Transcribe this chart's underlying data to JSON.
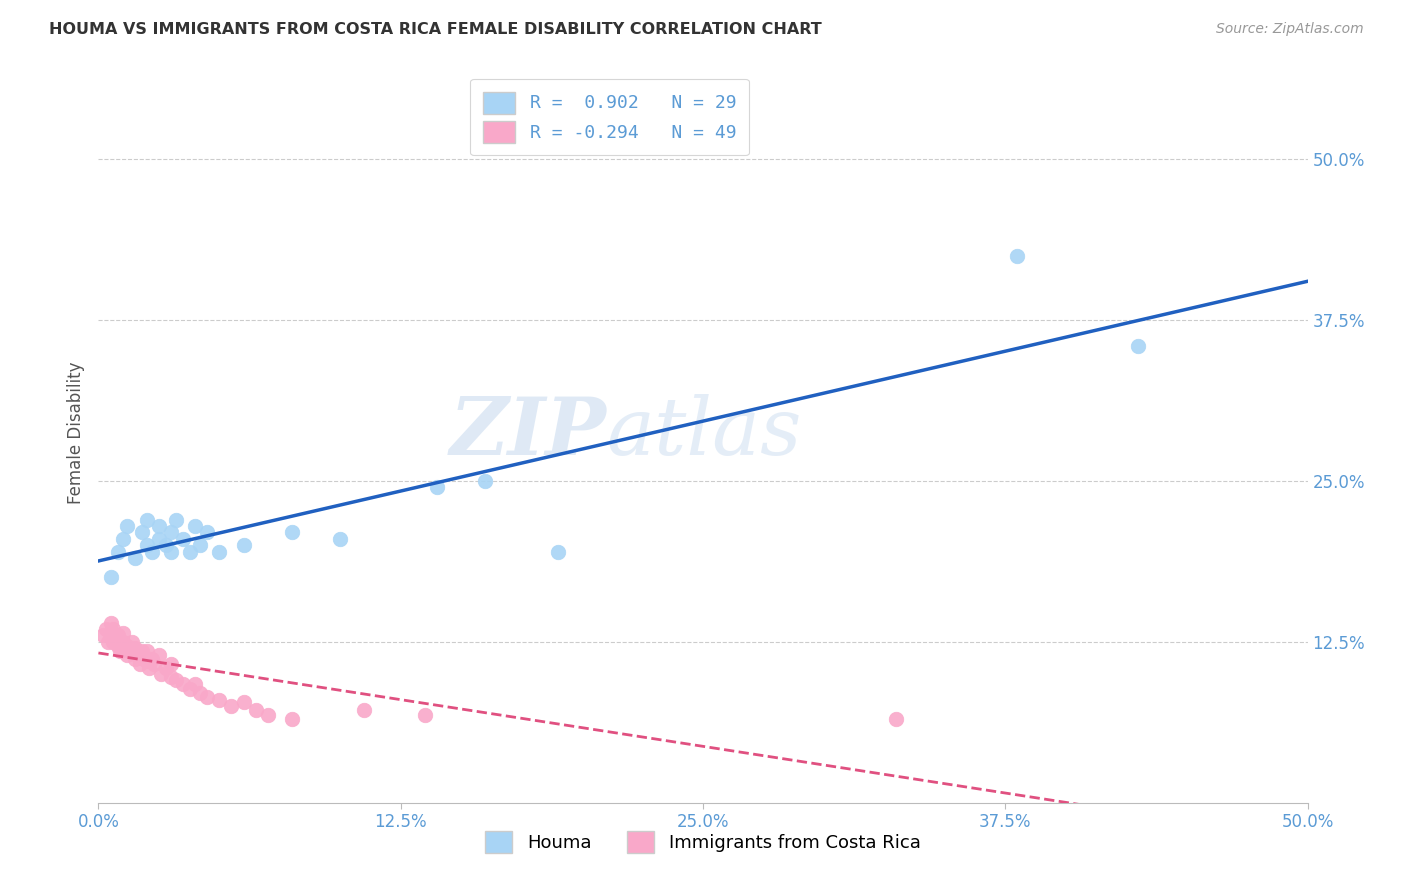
{
  "title": "HOUMA VS IMMIGRANTS FROM COSTA RICA FEMALE DISABILITY CORRELATION CHART",
  "source": "Source: ZipAtlas.com",
  "tick_color": "#5b9bd5",
  "ylabel": "Female Disability",
  "xmin": 0.0,
  "xmax": 0.5,
  "ymin": 0.0,
  "ymax": 0.575,
  "ytick_labels": [
    "12.5%",
    "25.0%",
    "37.5%",
    "50.0%"
  ],
  "ytick_values": [
    0.125,
    0.25,
    0.375,
    0.5
  ],
  "xtick_labels": [
    "0.0%",
    "12.5%",
    "25.0%",
    "37.5%",
    "50.0%"
  ],
  "xtick_values": [
    0.0,
    0.125,
    0.25,
    0.375,
    0.5
  ],
  "houma_color": "#a8d4f5",
  "immigrants_color": "#f9a8c9",
  "houma_line_color": "#2060c0",
  "immigrants_line_color": "#e05080",
  "houma_R": 0.902,
  "houma_N": 29,
  "immigrants_R": -0.294,
  "immigrants_N": 49,
  "houma_scatter_x": [
    0.005,
    0.008,
    0.01,
    0.012,
    0.015,
    0.018,
    0.02,
    0.02,
    0.022,
    0.025,
    0.025,
    0.028,
    0.03,
    0.03,
    0.032,
    0.035,
    0.038,
    0.04,
    0.042,
    0.045,
    0.05,
    0.06,
    0.08,
    0.1,
    0.14,
    0.16,
    0.19,
    0.38,
    0.43
  ],
  "houma_scatter_y": [
    0.175,
    0.195,
    0.205,
    0.215,
    0.19,
    0.21,
    0.2,
    0.22,
    0.195,
    0.205,
    0.215,
    0.2,
    0.195,
    0.21,
    0.22,
    0.205,
    0.195,
    0.215,
    0.2,
    0.21,
    0.195,
    0.2,
    0.21,
    0.205,
    0.245,
    0.25,
    0.195,
    0.425,
    0.355
  ],
  "immigrants_scatter_x": [
    0.002,
    0.003,
    0.004,
    0.005,
    0.005,
    0.006,
    0.006,
    0.007,
    0.008,
    0.008,
    0.009,
    0.01,
    0.01,
    0.01,
    0.012,
    0.012,
    0.013,
    0.014,
    0.015,
    0.015,
    0.016,
    0.017,
    0.018,
    0.019,
    0.02,
    0.02,
    0.021,
    0.022,
    0.023,
    0.025,
    0.026,
    0.028,
    0.03,
    0.03,
    0.032,
    0.035,
    0.038,
    0.04,
    0.042,
    0.045,
    0.05,
    0.055,
    0.06,
    0.065,
    0.07,
    0.08,
    0.11,
    0.135,
    0.33
  ],
  "immigrants_scatter_y": [
    0.13,
    0.135,
    0.125,
    0.13,
    0.14,
    0.125,
    0.135,
    0.128,
    0.122,
    0.13,
    0.118,
    0.12,
    0.125,
    0.132,
    0.115,
    0.122,
    0.118,
    0.125,
    0.112,
    0.12,
    0.115,
    0.108,
    0.118,
    0.112,
    0.11,
    0.118,
    0.105,
    0.112,
    0.108,
    0.115,
    0.1,
    0.105,
    0.098,
    0.108,
    0.095,
    0.092,
    0.088,
    0.092,
    0.085,
    0.082,
    0.08,
    0.075,
    0.078,
    0.072,
    0.068,
    0.065,
    0.072,
    0.068,
    0.065
  ],
  "watermark_zip": "ZIP",
  "watermark_atlas": "atlas",
  "watermark_zip_color": "#c5d8ee",
  "watermark_atlas_color": "#c5d8ee",
  "background_color": "#ffffff",
  "grid_color": "#cccccc",
  "legend_label_houma": "R =  0.902   N = 29",
  "legend_label_immigrants": "R = -0.294   N = 49"
}
